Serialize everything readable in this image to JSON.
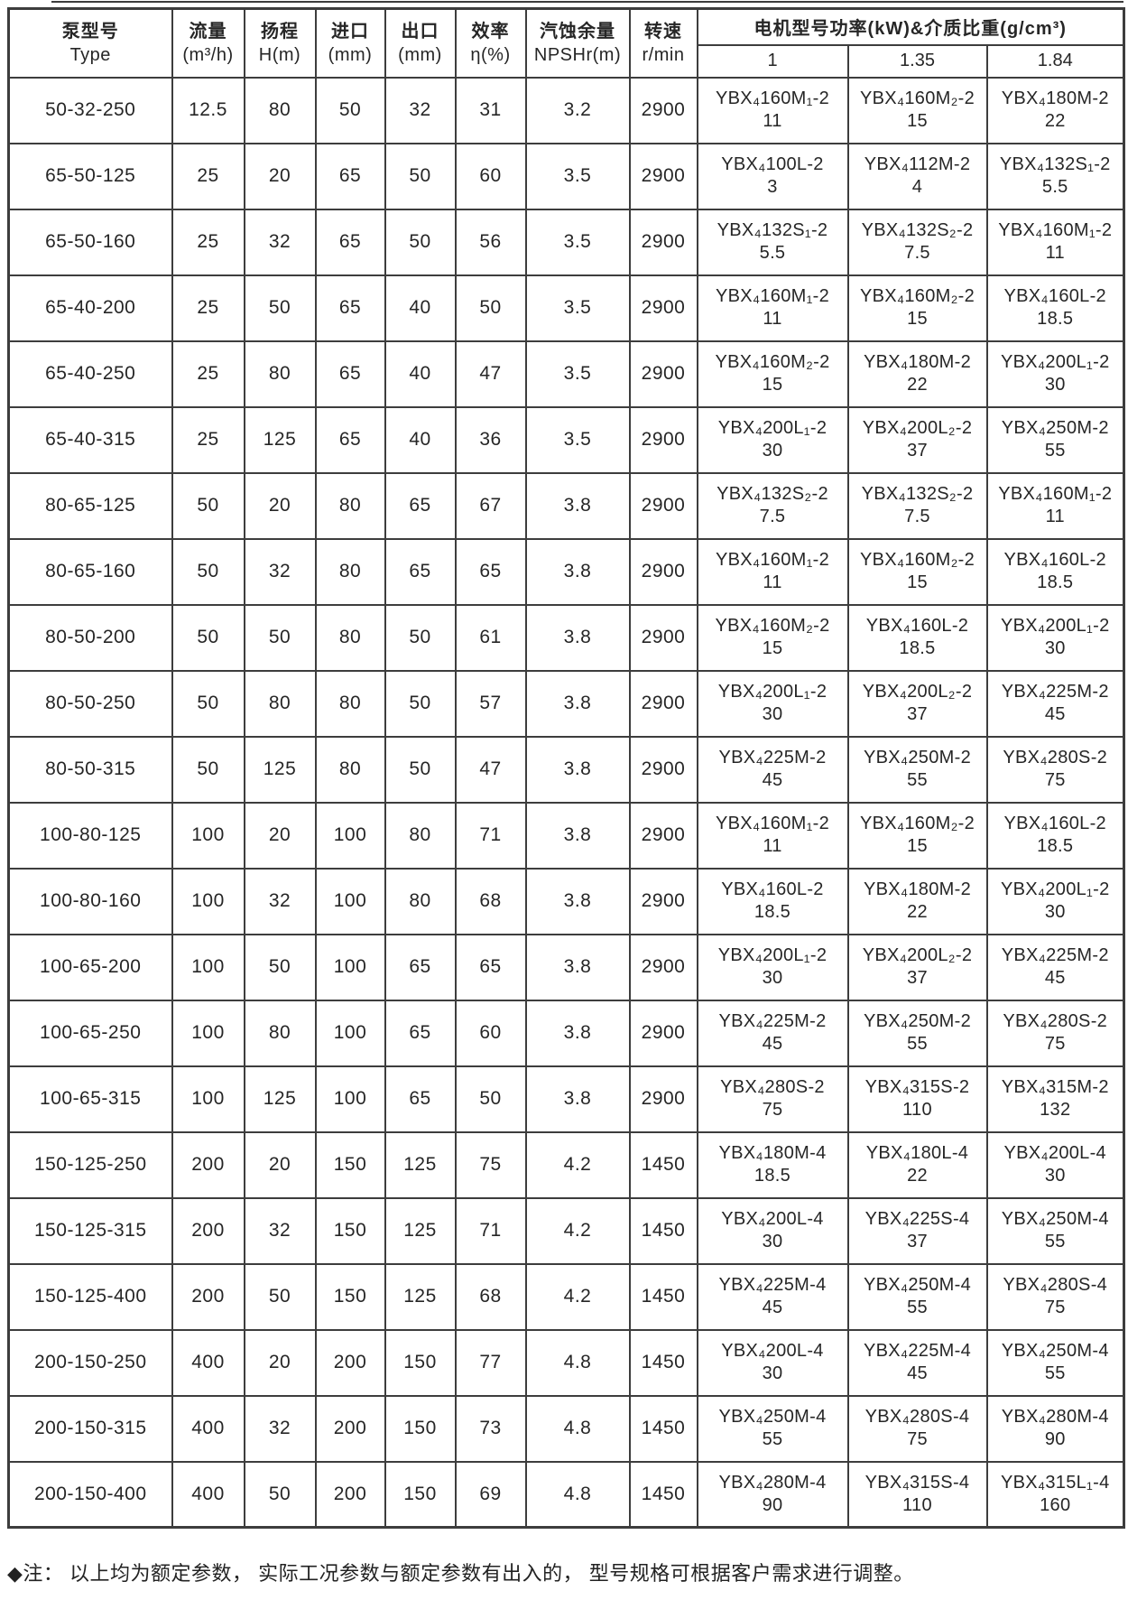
{
  "header": {
    "col_type": {
      "line1": "泵型号",
      "line2": "Type"
    },
    "col_flow": {
      "line1": "流量",
      "line2": "(m³/h)"
    },
    "col_head": {
      "line1": "扬程",
      "line2": "H(m)"
    },
    "col_inlet": {
      "line1": "进口",
      "line2": "(mm)"
    },
    "col_outlet": {
      "line1": "出口",
      "line2": "(mm)"
    },
    "col_eff": {
      "line1": "效率",
      "line2": "η(%)"
    },
    "col_npshr": {
      "line1": "汽蚀余量",
      "line2": "NPSHr(m)"
    },
    "col_speed": {
      "line1": "转速",
      "line2": "r/min"
    },
    "col_motor_group": "电机型号功率(kW)&介质比重(g/cm³)",
    "motor_subcols": [
      "1",
      "1.35",
      "1.84"
    ]
  },
  "rows": [
    {
      "type": "50-32-250",
      "flow": "12.5",
      "head": "80",
      "inlet": "50",
      "outlet": "32",
      "efficiency": "31",
      "npshr": "3.2",
      "speed": "2900",
      "motors": [
        {
          "model": "YBX₄160M₁-2",
          "power": "11"
        },
        {
          "model": "YBX₄160M₂-2",
          "power": "15"
        },
        {
          "model": "YBX₄180M-2",
          "power": "22"
        }
      ]
    },
    {
      "type": "65-50-125",
      "flow": "25",
      "head": "20",
      "inlet": "65",
      "outlet": "50",
      "efficiency": "60",
      "npshr": "3.5",
      "speed": "2900",
      "motors": [
        {
          "model": "YBX₄100L-2",
          "power": "3"
        },
        {
          "model": "YBX₄112M-2",
          "power": "4"
        },
        {
          "model": "YBX₄132S₁-2",
          "power": "5.5"
        }
      ]
    },
    {
      "type": "65-50-160",
      "flow": "25",
      "head": "32",
      "inlet": "65",
      "outlet": "50",
      "efficiency": "56",
      "npshr": "3.5",
      "speed": "2900",
      "motors": [
        {
          "model": "YBX₄132S₁-2",
          "power": "5.5"
        },
        {
          "model": "YBX₄132S₂-2",
          "power": "7.5"
        },
        {
          "model": "YBX₄160M₁-2",
          "power": "11"
        }
      ]
    },
    {
      "type": "65-40-200",
      "flow": "25",
      "head": "50",
      "inlet": "65",
      "outlet": "40",
      "efficiency": "50",
      "npshr": "3.5",
      "speed": "2900",
      "motors": [
        {
          "model": "YBX₄160M₁-2",
          "power": "11"
        },
        {
          "model": "YBX₄160M₂-2",
          "power": "15"
        },
        {
          "model": "YBX₄160L-2",
          "power": "18.5"
        }
      ]
    },
    {
      "type": "65-40-250",
      "flow": "25",
      "head": "80",
      "inlet": "65",
      "outlet": "40",
      "efficiency": "47",
      "npshr": "3.5",
      "speed": "2900",
      "motors": [
        {
          "model": "YBX₄160M₂-2",
          "power": "15"
        },
        {
          "model": "YBX₄180M-2",
          "power": "22"
        },
        {
          "model": "YBX₄200L₁-2",
          "power": "30"
        }
      ]
    },
    {
      "type": "65-40-315",
      "flow": "25",
      "head": "125",
      "inlet": "65",
      "outlet": "40",
      "efficiency": "36",
      "npshr": "3.5",
      "speed": "2900",
      "motors": [
        {
          "model": "YBX₄200L₁-2",
          "power": "30"
        },
        {
          "model": "YBX₄200L₂-2",
          "power": "37"
        },
        {
          "model": "YBX₄250M-2",
          "power": "55"
        }
      ]
    },
    {
      "type": "80-65-125",
      "flow": "50",
      "head": "20",
      "inlet": "80",
      "outlet": "65",
      "efficiency": "67",
      "npshr": "3.8",
      "speed": "2900",
      "motors": [
        {
          "model": "YBX₄132S₂-2",
          "power": "7.5"
        },
        {
          "model": "YBX₄132S₂-2",
          "power": "7.5"
        },
        {
          "model": "YBX₄160M₁-2",
          "power": "11"
        }
      ]
    },
    {
      "type": "80-65-160",
      "flow": "50",
      "head": "32",
      "inlet": "80",
      "outlet": "65",
      "efficiency": "65",
      "npshr": "3.8",
      "speed": "2900",
      "motors": [
        {
          "model": "YBX₄160M₁-2",
          "power": "11"
        },
        {
          "model": "YBX₄160M₂-2",
          "power": "15"
        },
        {
          "model": "YBX₄160L-2",
          "power": "18.5"
        }
      ]
    },
    {
      "type": "80-50-200",
      "flow": "50",
      "head": "50",
      "inlet": "80",
      "outlet": "50",
      "efficiency": "61",
      "npshr": "3.8",
      "speed": "2900",
      "motors": [
        {
          "model": "YBX₄160M₂-2",
          "power": "15"
        },
        {
          "model": "YBX₄160L-2",
          "power": "18.5"
        },
        {
          "model": "YBX₄200L₁-2",
          "power": "30"
        }
      ]
    },
    {
      "type": "80-50-250",
      "flow": "50",
      "head": "80",
      "inlet": "80",
      "outlet": "50",
      "efficiency": "57",
      "npshr": "3.8",
      "speed": "2900",
      "motors": [
        {
          "model": "YBX₄200L₁-2",
          "power": "30"
        },
        {
          "model": "YBX₄200L₂-2",
          "power": "37"
        },
        {
          "model": "YBX₄225M-2",
          "power": "45"
        }
      ]
    },
    {
      "type": "80-50-315",
      "flow": "50",
      "head": "125",
      "inlet": "80",
      "outlet": "50",
      "efficiency": "47",
      "npshr": "3.8",
      "speed": "2900",
      "motors": [
        {
          "model": "YBX₄225M-2",
          "power": "45"
        },
        {
          "model": "YBX₄250M-2",
          "power": "55"
        },
        {
          "model": "YBX₄280S-2",
          "power": "75"
        }
      ]
    },
    {
      "type": "100-80-125",
      "flow": "100",
      "head": "20",
      "inlet": "100",
      "outlet": "80",
      "efficiency": "71",
      "npshr": "3.8",
      "speed": "2900",
      "motors": [
        {
          "model": "YBX₄160M₁-2",
          "power": "11"
        },
        {
          "model": "YBX₄160M₂-2",
          "power": "15"
        },
        {
          "model": "YBX₄160L-2",
          "power": "18.5"
        }
      ]
    },
    {
      "type": "100-80-160",
      "flow": "100",
      "head": "32",
      "inlet": "100",
      "outlet": "80",
      "efficiency": "68",
      "npshr": "3.8",
      "speed": "2900",
      "motors": [
        {
          "model": "YBX₄160L-2",
          "power": "18.5"
        },
        {
          "model": "YBX₄180M-2",
          "power": "22"
        },
        {
          "model": "YBX₄200L₁-2",
          "power": "30"
        }
      ]
    },
    {
      "type": "100-65-200",
      "flow": "100",
      "head": "50",
      "inlet": "100",
      "outlet": "65",
      "efficiency": "65",
      "npshr": "3.8",
      "speed": "2900",
      "motors": [
        {
          "model": "YBX₄200L₁-2",
          "power": "30"
        },
        {
          "model": "YBX₄200L₂-2",
          "power": "37"
        },
        {
          "model": "YBX₄225M-2",
          "power": "45"
        }
      ]
    },
    {
      "type": "100-65-250",
      "flow": "100",
      "head": "80",
      "inlet": "100",
      "outlet": "65",
      "efficiency": "60",
      "npshr": "3.8",
      "speed": "2900",
      "motors": [
        {
          "model": "YBX₄225M-2",
          "power": "45"
        },
        {
          "model": "YBX₄250M-2",
          "power": "55"
        },
        {
          "model": "YBX₄280S-2",
          "power": "75"
        }
      ]
    },
    {
      "type": "100-65-315",
      "flow": "100",
      "head": "125",
      "inlet": "100",
      "outlet": "65",
      "efficiency": "50",
      "npshr": "3.8",
      "speed": "2900",
      "motors": [
        {
          "model": "YBX₄280S-2",
          "power": "75"
        },
        {
          "model": "YBX₄315S-2",
          "power": "110"
        },
        {
          "model": "YBX₄315M-2",
          "power": "132"
        }
      ]
    },
    {
      "type": "150-125-250",
      "flow": "200",
      "head": "20",
      "inlet": "150",
      "outlet": "125",
      "efficiency": "75",
      "npshr": "4.2",
      "speed": "1450",
      "motors": [
        {
          "model": "YBX₄180M-4",
          "power": "18.5"
        },
        {
          "model": "YBX₄180L-4",
          "power": "22"
        },
        {
          "model": "YBX₄200L-4",
          "power": "30"
        }
      ]
    },
    {
      "type": "150-125-315",
      "flow": "200",
      "head": "32",
      "inlet": "150",
      "outlet": "125",
      "efficiency": "71",
      "npshr": "4.2",
      "speed": "1450",
      "motors": [
        {
          "model": "YBX₄200L-4",
          "power": "30"
        },
        {
          "model": "YBX₄225S-4",
          "power": "37"
        },
        {
          "model": "YBX₄250M-4",
          "power": "55"
        }
      ]
    },
    {
      "type": "150-125-400",
      "flow": "200",
      "head": "50",
      "inlet": "150",
      "outlet": "125",
      "efficiency": "68",
      "npshr": "4.2",
      "speed": "1450",
      "motors": [
        {
          "model": "YBX₄225M-4",
          "power": "45"
        },
        {
          "model": "YBX₄250M-4",
          "power": "55"
        },
        {
          "model": "YBX₄280S-4",
          "power": "75"
        }
      ]
    },
    {
      "type": "200-150-250",
      "flow": "400",
      "head": "20",
      "inlet": "200",
      "outlet": "150",
      "efficiency": "77",
      "npshr": "4.8",
      "speed": "1450",
      "motors": [
        {
          "model": "YBX₄200L-4",
          "power": "30"
        },
        {
          "model": "YBX₄225M-4",
          "power": "45"
        },
        {
          "model": "YBX₄250M-4",
          "power": "55"
        }
      ]
    },
    {
      "type": "200-150-315",
      "flow": "400",
      "head": "32",
      "inlet": "200",
      "outlet": "150",
      "efficiency": "73",
      "npshr": "4.8",
      "speed": "1450",
      "motors": [
        {
          "model": "YBX₄250M-4",
          "power": "55"
        },
        {
          "model": "YBX₄280S-4",
          "power": "75"
        },
        {
          "model": "YBX₄280M-4",
          "power": "90"
        }
      ]
    },
    {
      "type": "200-150-400",
      "flow": "400",
      "head": "50",
      "inlet": "200",
      "outlet": "150",
      "efficiency": "69",
      "npshr": "4.8",
      "speed": "1450",
      "motors": [
        {
          "model": "YBX₄280M-4",
          "power": "90"
        },
        {
          "model": "YBX₄315S-4",
          "power": "110"
        },
        {
          "model": "YBX₄315L₁-4",
          "power": "160"
        }
      ]
    }
  ],
  "footnote": "◆注： 以上均为额定参数， 实际工况参数与额定参数有出入的， 型号规格可根据客户需求进行调整。"
}
